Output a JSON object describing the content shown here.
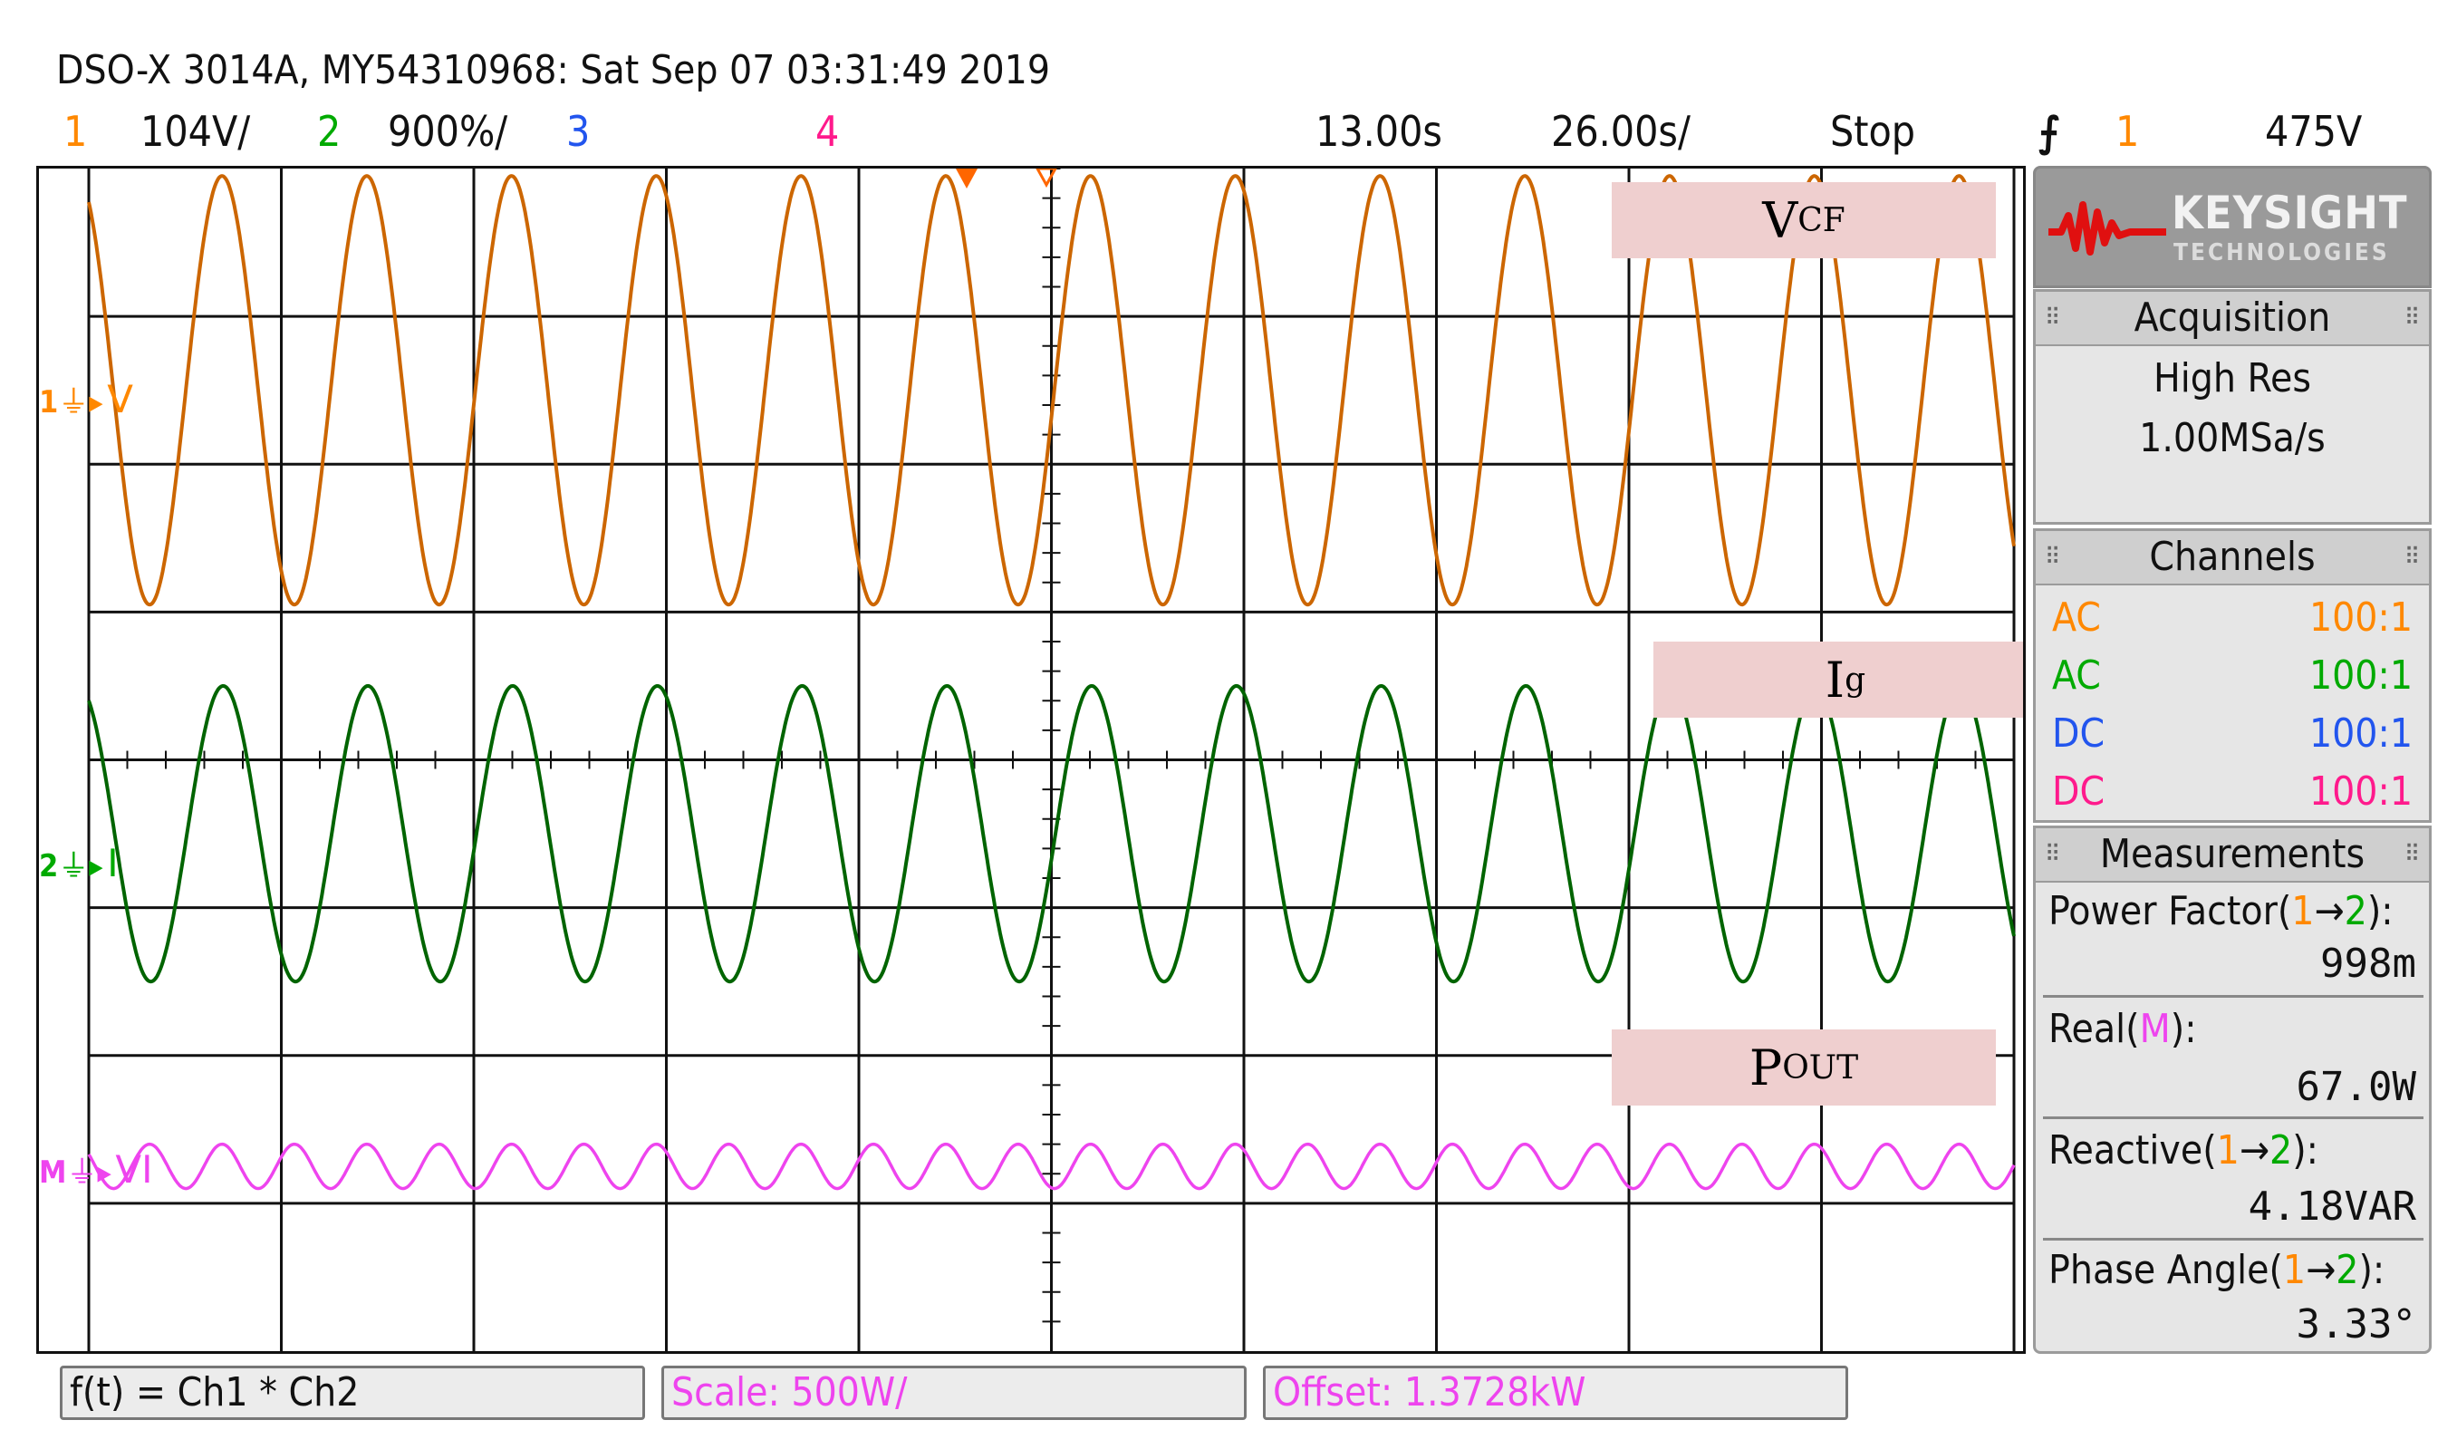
{
  "header": {
    "title": "DSO-X 3014A, MY54310968: Sat Sep 07 03:31:49 2019"
  },
  "status_bar": {
    "ch1_num": "1",
    "ch1_scale": "104V/",
    "ch2_num": "2",
    "ch2_scale": "900%/",
    "ch3_num": "3",
    "ch4_num": "4",
    "time_pos": "13.00s",
    "time_scale": "26.00s/",
    "run_state": "Stop",
    "trig_slope": "⨍",
    "trig_ch": "1",
    "trig_level": "475V"
  },
  "colors": {
    "ch1": "#cc6600",
    "ch1_label": "#ff8800",
    "ch2": "#006400",
    "ch2_label": "#00aa00",
    "ch3": "#2255ee",
    "ch4": "#ff1a8c",
    "math": "#ee44ee",
    "grid": "#111111",
    "annot_bg": "#efcfcf"
  },
  "traces": {
    "ch1_marker": "1",
    "ch1_unit": "V",
    "ch2_marker": "2",
    "ch2_unit": "I",
    "math_marker": "M",
    "math_unit": "VI"
  },
  "annotations": {
    "vcf_main": "V",
    "vcf_sub": "CF",
    "ig_main": "I",
    "ig_sub": "g",
    "pout_main": "P",
    "pout_sub": "OUT"
  },
  "brand": {
    "name": "KEYSIGHT",
    "sub": "TECHNOLOGIES",
    "logo_icon": "keysight-wave-icon"
  },
  "acquisition": {
    "title": "Acquisition",
    "mode": "High Res",
    "rate": "1.00MSa/s"
  },
  "channels": {
    "title": "Channels",
    "rows": [
      {
        "coupling": "AC",
        "probe": "100:1"
      },
      {
        "coupling": "AC",
        "probe": "100:1"
      },
      {
        "coupling": "DC",
        "probe": "100:1"
      },
      {
        "coupling": "DC",
        "probe": "100:1"
      }
    ]
  },
  "measurements": {
    "title": "Measurements",
    "pf_label_a": "Power Factor(",
    "pf_src1": "1",
    "pf_arrow": "→",
    "pf_src2": "2",
    "pf_label_b": "):",
    "pf_value": "998m",
    "real_label_a": "Real(",
    "real_src": "M",
    "real_label_b": "):",
    "real_value": "67.0W",
    "react_label_a": "Reactive(",
    "react_src1": "1",
    "react_arrow": "→",
    "react_src2": "2",
    "react_label_b": "):",
    "react_value": "4.18VAR",
    "phase_label_a": "Phase Angle(",
    "phase_src1": "1",
    "phase_arrow": "→",
    "phase_src2": "2",
    "phase_label_b": "):",
    "phase_value": "3.33°"
  },
  "math_bar": {
    "function": "f(t) = Ch1 * Ch2",
    "scale": "Scale: 500W/",
    "offset": "Offset: 1.3728kW"
  },
  "waveforms": {
    "ch1_cycles": 13.3,
    "ch2_cycles": 13.3,
    "math_cycles": 26.6,
    "ch1_amplitude_div": 1.45,
    "ch2_amplitude_div": 1.0,
    "math_amplitude_div": 0.15,
    "ch1_center_div": 1.5,
    "ch2_center_div": 4.5,
    "math_center_div": 6.75
  }
}
